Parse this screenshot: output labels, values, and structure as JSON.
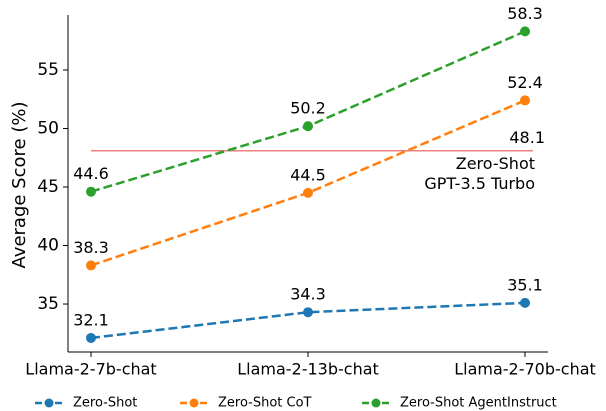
{
  "chart_data": {
    "type": "line",
    "ylabel": "Average Score (%)",
    "categories": [
      "Llama-2-7b-chat",
      "Llama-2-13b-chat",
      "Llama-2-70b-chat"
    ],
    "series": [
      {
        "name": "Zero-Shot",
        "color": "#1f77b4",
        "values": [
          32.1,
          34.3,
          35.1
        ]
      },
      {
        "name": "Zero-Shot CoT",
        "color": "#ff7f0e",
        "values": [
          38.3,
          44.5,
          52.4
        ]
      },
      {
        "name": "Zero-Shot AgentInstruct",
        "color": "#2ca02c",
        "values": [
          44.6,
          50.2,
          58.3
        ]
      }
    ],
    "reference": {
      "value": 48.1,
      "color": "#f08080",
      "text": [
        "Zero-Shot",
        "GPT-3.5 Turbo"
      ]
    },
    "ylim": [
      30.9,
      59.7
    ],
    "yticks": [
      35,
      40,
      45,
      50,
      55
    ],
    "legend": "bottom"
  }
}
